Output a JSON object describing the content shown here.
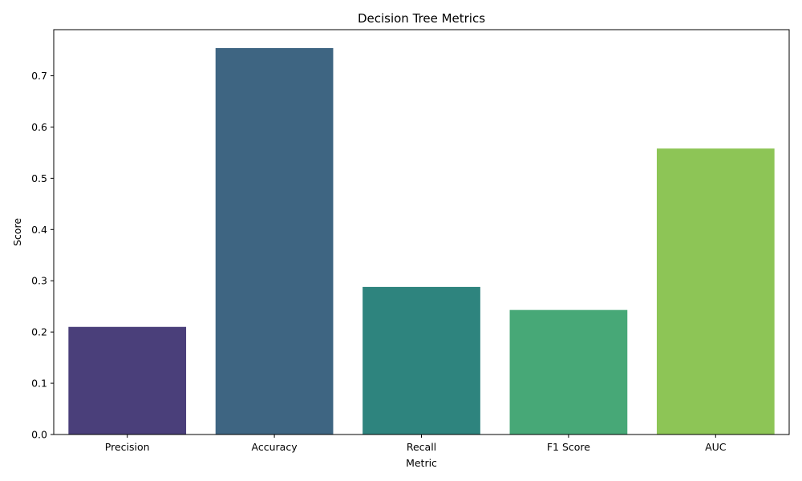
{
  "chart_data": {
    "type": "bar",
    "title": "Decision Tree Metrics",
    "xlabel": "Metric",
    "ylabel": "Score",
    "categories": [
      "Precision",
      "Accuracy",
      "Recall",
      "F1 Score",
      "AUC"
    ],
    "values": [
      0.21,
      0.754,
      0.288,
      0.243,
      0.558
    ],
    "colors": [
      "#4a3f7a",
      "#3e6582",
      "#2e847e",
      "#47a877",
      "#8dc556"
    ],
    "ylim": [
      0,
      0.79
    ],
    "yticks": [
      "0.0",
      "0.1",
      "0.2",
      "0.3",
      "0.4",
      "0.5",
      "0.6",
      "0.7"
    ],
    "grid": false,
    "legend": "none"
  }
}
